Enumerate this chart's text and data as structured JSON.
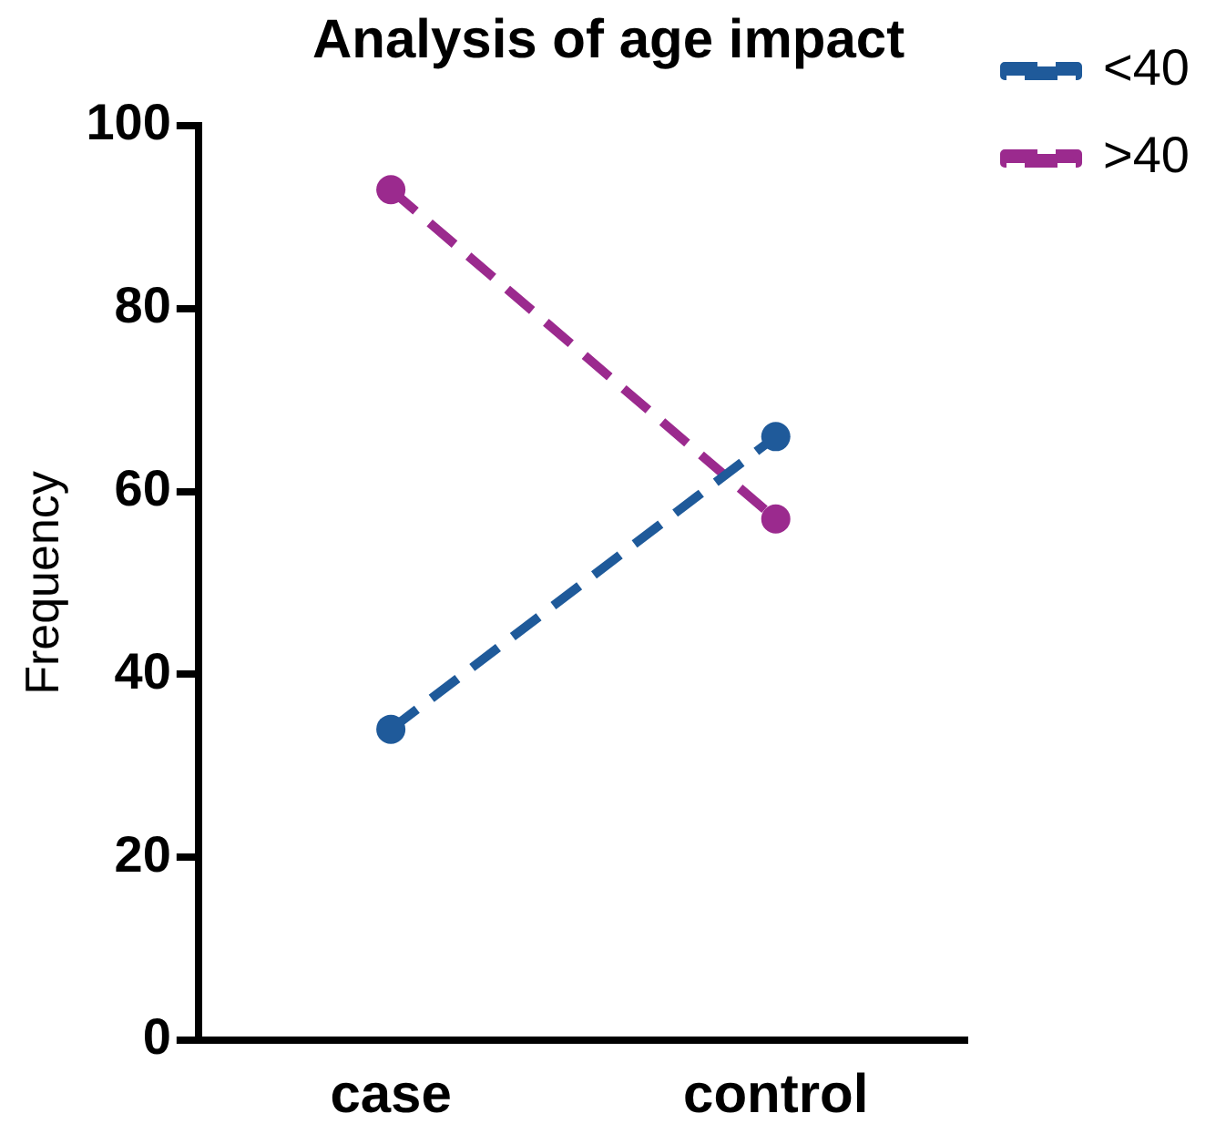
{
  "chart_data": {
    "type": "line",
    "title": "Analysis of age impact",
    "ylabel": "Frequency",
    "categories": [
      "case",
      "control"
    ],
    "series": [
      {
        "name": "<40",
        "color": "#1f5a9a",
        "values": [
          34,
          66
        ]
      },
      {
        "name": ">40",
        "color": "#9b2a8e",
        "values": [
          93,
          57
        ]
      }
    ],
    "ylim": [
      0,
      100
    ],
    "yticks": [
      0,
      20,
      40,
      60,
      80,
      100
    ],
    "grid": false,
    "legend": "top right",
    "marker": "circle",
    "line_style": "dashed"
  }
}
